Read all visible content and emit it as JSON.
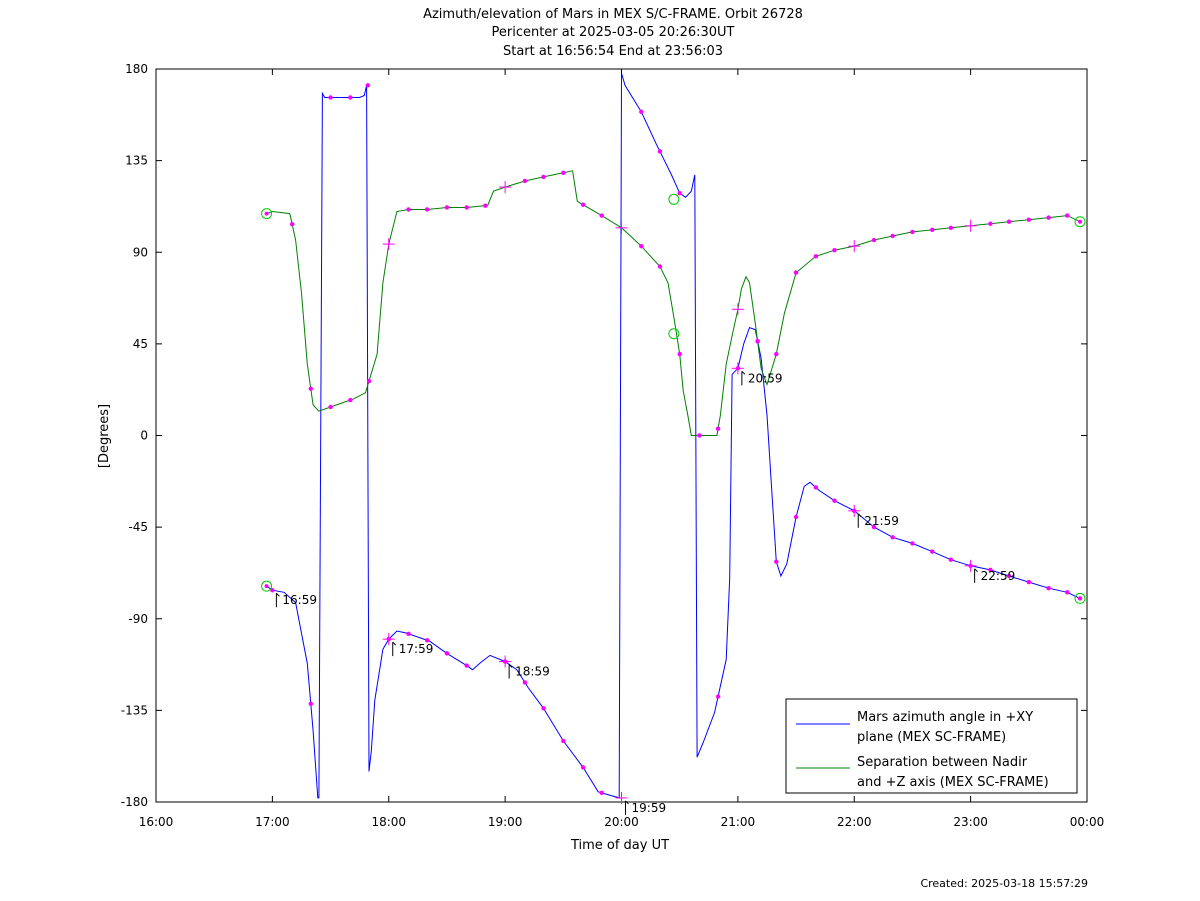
{
  "chart_data": {
    "type": "line",
    "title": "Azimuth/elevation of Mars in MEX S/C-FRAME.  Orbit 26728",
    "subtitle_1": "Pericenter at 2025-03-05 20:26:30UT",
    "subtitle_2": "Start at 16:56:54 End at 23:56:03",
    "xlabel": "Time of day UT",
    "ylabel": "[Degrees]",
    "xlim": [
      16.0,
      24.0
    ],
    "ylim": [
      -180,
      180
    ],
    "xticks": [
      16,
      17,
      18,
      19,
      20,
      21,
      22,
      23,
      24
    ],
    "xtick_labels": [
      "16:00",
      "17:00",
      "18:00",
      "19:00",
      "20:00",
      "21:00",
      "22:00",
      "23:00",
      "00:00"
    ],
    "yticks": [
      180,
      135,
      90,
      45,
      0,
      -45,
      -90,
      -135,
      -180
    ],
    "ytick_labels": [
      "180",
      "135",
      "90",
      "45",
      "0",
      "-45",
      "-90",
      "-135",
      "-180"
    ],
    "grid": false,
    "legend_position": "bottom-right",
    "series": [
      {
        "name": "Mars azimuth angle in +XY plane (MEX SC-FRAME)",
        "legend_line1": "Mars azimuth angle in +XY",
        "legend_line2": "plane (MEX SC-FRAME)",
        "color": "#0000ff",
        "points": [
          [
            16.95,
            -74
          ],
          [
            17.0,
            -76
          ],
          [
            17.1,
            -77
          ],
          [
            17.2,
            -82
          ],
          [
            17.3,
            -112
          ],
          [
            17.35,
            -145
          ],
          [
            17.39,
            -178
          ],
          [
            17.4,
            -178
          ],
          [
            17.43,
            168
          ],
          [
            17.45,
            166
          ],
          [
            17.55,
            166
          ],
          [
            17.65,
            166
          ],
          [
            17.75,
            166
          ],
          [
            17.79,
            167
          ],
          [
            17.81,
            172
          ],
          [
            17.83,
            -165
          ],
          [
            17.85,
            -155
          ],
          [
            17.88,
            -130
          ],
          [
            17.95,
            -105
          ],
          [
            18.0,
            -100
          ],
          [
            18.07,
            -96
          ],
          [
            18.15,
            -97
          ],
          [
            18.35,
            -101
          ],
          [
            18.5,
            -107
          ],
          [
            18.67,
            -113
          ],
          [
            18.72,
            -115
          ],
          [
            18.8,
            -111
          ],
          [
            18.87,
            -108
          ],
          [
            19.0,
            -111
          ],
          [
            19.1,
            -115
          ],
          [
            19.2,
            -124
          ],
          [
            19.33,
            -134
          ],
          [
            19.5,
            -150
          ],
          [
            19.67,
            -163
          ],
          [
            19.8,
            -175
          ],
          [
            19.98,
            -178
          ],
          [
            20.0,
            178
          ],
          [
            20.03,
            172
          ],
          [
            20.17,
            159
          ],
          [
            20.3,
            143
          ],
          [
            20.43,
            128
          ],
          [
            20.5,
            119
          ],
          [
            20.55,
            117
          ],
          [
            20.6,
            120
          ],
          [
            20.63,
            128
          ],
          [
            20.65,
            -158
          ],
          [
            20.7,
            -151
          ],
          [
            20.8,
            -136
          ],
          [
            20.9,
            -110
          ],
          [
            20.93,
            -70
          ],
          [
            20.95,
            30
          ],
          [
            21.0,
            33
          ],
          [
            21.05,
            45
          ],
          [
            21.1,
            53
          ],
          [
            21.15,
            52
          ],
          [
            21.2,
            38
          ],
          [
            21.25,
            10
          ],
          [
            21.3,
            -35
          ],
          [
            21.33,
            -62
          ],
          [
            21.37,
            -69
          ],
          [
            21.42,
            -63
          ],
          [
            21.5,
            -40
          ],
          [
            21.57,
            -25
          ],
          [
            21.62,
            -23
          ],
          [
            21.7,
            -27
          ],
          [
            21.83,
            -32
          ],
          [
            22.0,
            -37
          ],
          [
            22.17,
            -45
          ],
          [
            22.33,
            -50
          ],
          [
            22.5,
            -53
          ],
          [
            22.67,
            -57
          ],
          [
            22.83,
            -61
          ],
          [
            23.0,
            -64
          ],
          [
            23.17,
            -66
          ],
          [
            23.33,
            -69
          ],
          [
            23.5,
            -72
          ],
          [
            23.67,
            -75
          ],
          [
            23.83,
            -77
          ],
          [
            23.94,
            -80
          ]
        ],
        "markers_x": [
          17.0,
          17.33,
          17.5,
          17.67,
          17.82,
          18.0,
          18.17,
          18.33,
          18.5,
          18.67,
          19.0,
          19.17,
          19.33,
          19.5,
          19.67,
          19.83,
          20.17,
          20.33,
          20.5,
          20.83,
          21.0,
          21.17,
          21.33,
          21.5,
          21.67,
          21.83,
          22.0,
          22.17,
          22.33,
          22.5,
          22.67,
          22.83,
          23.0,
          23.17,
          23.33,
          23.5,
          23.67,
          23.83,
          23.94
        ],
        "crosses_x": [
          18.0,
          19.0,
          20.0,
          21.0,
          22.0,
          23.0
        ],
        "start_end_circles_x": [
          16.95,
          23.94
        ],
        "annotations": [
          {
            "x": 17.0,
            "label": "16:59"
          },
          {
            "x": 18.0,
            "label": "17:59"
          },
          {
            "x": 19.0,
            "label": "18:59"
          },
          {
            "x": 20.0,
            "label": "19:59"
          },
          {
            "x": 21.0,
            "label": "20:59"
          },
          {
            "x": 22.0,
            "label": "21:59"
          },
          {
            "x": 23.0,
            "label": "22:59"
          }
        ]
      },
      {
        "name": "Separation between Nadir and +Z axis (MEX SC-FRAME)",
        "legend_line1": "Separation between Nadir",
        "legend_line2": "and +Z axis (MEX SC-FRAME)",
        "color": "#008000",
        "points": [
          [
            16.95,
            109
          ],
          [
            17.0,
            110
          ],
          [
            17.15,
            109
          ],
          [
            17.2,
            96
          ],
          [
            17.25,
            70
          ],
          [
            17.3,
            35
          ],
          [
            17.35,
            15
          ],
          [
            17.4,
            12
          ],
          [
            17.5,
            14
          ],
          [
            17.6,
            16
          ],
          [
            17.7,
            18
          ],
          [
            17.8,
            21
          ],
          [
            17.9,
            40
          ],
          [
            17.95,
            75
          ],
          [
            18.0,
            94
          ],
          [
            18.07,
            110
          ],
          [
            18.17,
            111
          ],
          [
            18.33,
            111
          ],
          [
            18.5,
            112
          ],
          [
            18.67,
            112
          ],
          [
            18.85,
            113
          ],
          [
            18.9,
            120
          ],
          [
            19.0,
            122
          ],
          [
            19.17,
            125
          ],
          [
            19.33,
            127
          ],
          [
            19.5,
            129
          ],
          [
            19.58,
            130
          ],
          [
            19.62,
            115
          ],
          [
            19.65,
            114
          ],
          [
            19.83,
            108
          ],
          [
            20.0,
            102
          ],
          [
            20.17,
            93
          ],
          [
            20.33,
            83
          ],
          [
            20.4,
            75
          ],
          [
            20.45,
            58
          ],
          [
            20.5,
            40
          ],
          [
            20.53,
            22
          ],
          [
            20.57,
            10
          ],
          [
            20.6,
            0
          ],
          [
            20.67,
            0
          ],
          [
            20.75,
            0
          ],
          [
            20.82,
            0
          ],
          [
            20.85,
            10
          ],
          [
            20.9,
            35
          ],
          [
            20.95,
            49
          ],
          [
            21.0,
            62
          ],
          [
            21.03,
            72
          ],
          [
            21.07,
            78
          ],
          [
            21.1,
            75
          ],
          [
            21.15,
            55
          ],
          [
            21.2,
            33
          ],
          [
            21.25,
            25
          ],
          [
            21.33,
            40
          ],
          [
            21.4,
            60
          ],
          [
            21.5,
            80
          ],
          [
            21.67,
            88
          ],
          [
            21.83,
            91
          ],
          [
            22.0,
            93
          ],
          [
            22.17,
            96
          ],
          [
            22.33,
            98
          ],
          [
            22.5,
            100
          ],
          [
            22.67,
            101
          ],
          [
            22.83,
            102
          ],
          [
            23.0,
            103
          ],
          [
            23.17,
            104
          ],
          [
            23.33,
            105
          ],
          [
            23.5,
            106
          ],
          [
            23.67,
            107
          ],
          [
            23.83,
            108
          ],
          [
            23.94,
            105
          ]
        ],
        "markers_x": [
          17.17,
          17.33,
          17.5,
          17.67,
          17.83,
          18.17,
          18.33,
          18.5,
          18.67,
          18.83,
          19.17,
          19.33,
          19.5,
          19.67,
          19.83,
          20.17,
          20.33,
          20.5,
          20.67,
          20.83,
          21.17,
          21.33,
          21.5,
          21.67,
          21.83,
          22.17,
          22.33,
          22.5,
          22.67,
          22.83,
          23.17,
          23.33,
          23.5,
          23.67,
          23.83
        ],
        "crosses_x": [
          18.0,
          19.0,
          20.0,
          21.0,
          22.0,
          23.0
        ],
        "start_end_circles_x": [
          16.95,
          23.94
        ],
        "extra_circles": [
          [
            20.45,
            116
          ],
          [
            20.45,
            50
          ]
        ]
      }
    ]
  },
  "footer": {
    "created": "Created: 2025-03-18 15:57:29"
  }
}
